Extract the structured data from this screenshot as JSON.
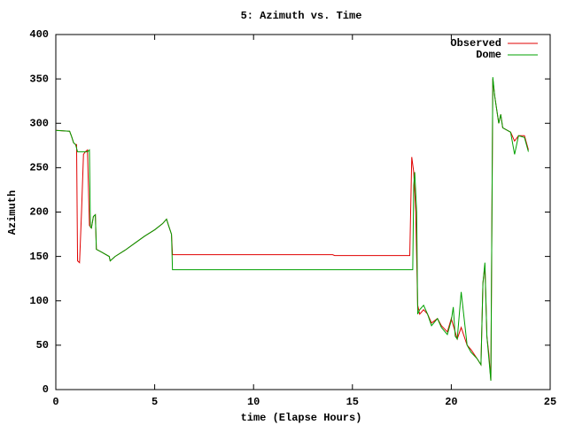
{
  "chart_data": {
    "type": "line",
    "title": "5: Azimuth vs. Time",
    "x_label": "time (Elapse Hours)",
    "y_label": "Azimuth",
    "xlim": [
      0,
      25
    ],
    "xticks": [
      0,
      5,
      10,
      15,
      20,
      25
    ],
    "ylim": [
      0,
      400
    ],
    "yticks": [
      0,
      50,
      100,
      150,
      200,
      250,
      300,
      350,
      400
    ],
    "grid": false,
    "legend": "top-right",
    "series": [
      {
        "name": "Observed",
        "color": "#e00000",
        "x": [
          0,
          0.7,
          0.8,
          0.9,
          1.0,
          1.05,
          1.1,
          1.2,
          1.3,
          1.4,
          1.5,
          1.6,
          1.7,
          1.8,
          1.9,
          2.0,
          2.05,
          2.3,
          2.7,
          2.75,
          3.0,
          3.5,
          4.0,
          4.5,
          5.0,
          5.4,
          5.6,
          5.7,
          5.85,
          5.9,
          14.0,
          14.1,
          17.9,
          18.0,
          18.1,
          18.2,
          18.3,
          18.4,
          18.6,
          18.8,
          19.0,
          19.3,
          19.5,
          19.8,
          20.0,
          20.3,
          20.5,
          20.8,
          21.0,
          21.3,
          21.5,
          21.6,
          21.7,
          21.8,
          21.9,
          22.0,
          22.1,
          22.2,
          22.4,
          22.5,
          22.6,
          23.0,
          23.2,
          23.4,
          23.7,
          23.9
        ],
        "values": [
          292,
          291,
          285,
          278,
          276,
          276,
          145,
          143,
          200,
          265,
          268,
          270,
          185,
          182,
          195,
          197,
          158,
          155,
          150,
          145,
          150,
          157,
          165,
          173,
          180,
          187,
          192,
          185,
          175,
          152,
          152,
          151,
          151,
          262,
          245,
          200,
          95,
          85,
          90,
          85,
          75,
          80,
          72,
          65,
          80,
          57,
          70,
          50,
          45,
          35,
          28,
          120,
          140,
          60,
          40,
          10,
          350,
          330,
          300,
          310,
          295,
          290,
          280,
          286,
          286,
          270
        ]
      },
      {
        "name": "Dome",
        "color": "#00a000",
        "x": [
          0,
          0.7,
          0.8,
          0.9,
          1.0,
          1.1,
          1.6,
          1.7,
          1.75,
          1.8,
          1.9,
          2.0,
          2.05,
          2.3,
          2.7,
          2.75,
          3.0,
          3.5,
          4.0,
          4.5,
          5.0,
          5.4,
          5.6,
          5.7,
          5.85,
          5.9,
          18.05,
          18.1,
          18.15,
          18.25,
          18.3,
          18.4,
          18.6,
          18.8,
          19.0,
          19.3,
          19.5,
          19.8,
          20.0,
          20.1,
          20.2,
          20.3,
          20.5,
          20.8,
          21.0,
          21.3,
          21.5,
          21.6,
          21.7,
          21.8,
          21.9,
          22.0,
          22.1,
          22.2,
          22.4,
          22.5,
          22.6,
          23.0,
          23.2,
          23.4,
          23.7,
          23.9
        ],
        "values": [
          292,
          291,
          285,
          278,
          276,
          268,
          268,
          270,
          183,
          182,
          195,
          197,
          158,
          155,
          150,
          145,
          150,
          157,
          165,
          173,
          180,
          187,
          192,
          185,
          175,
          135,
          135,
          230,
          245,
          200,
          85,
          90,
          95,
          85,
          72,
          80,
          70,
          62,
          78,
          93,
          60,
          57,
          110,
          50,
          42,
          35,
          28,
          120,
          143,
          60,
          35,
          10,
          352,
          330,
          300,
          310,
          295,
          290,
          265,
          286,
          284,
          268
        ]
      }
    ]
  }
}
